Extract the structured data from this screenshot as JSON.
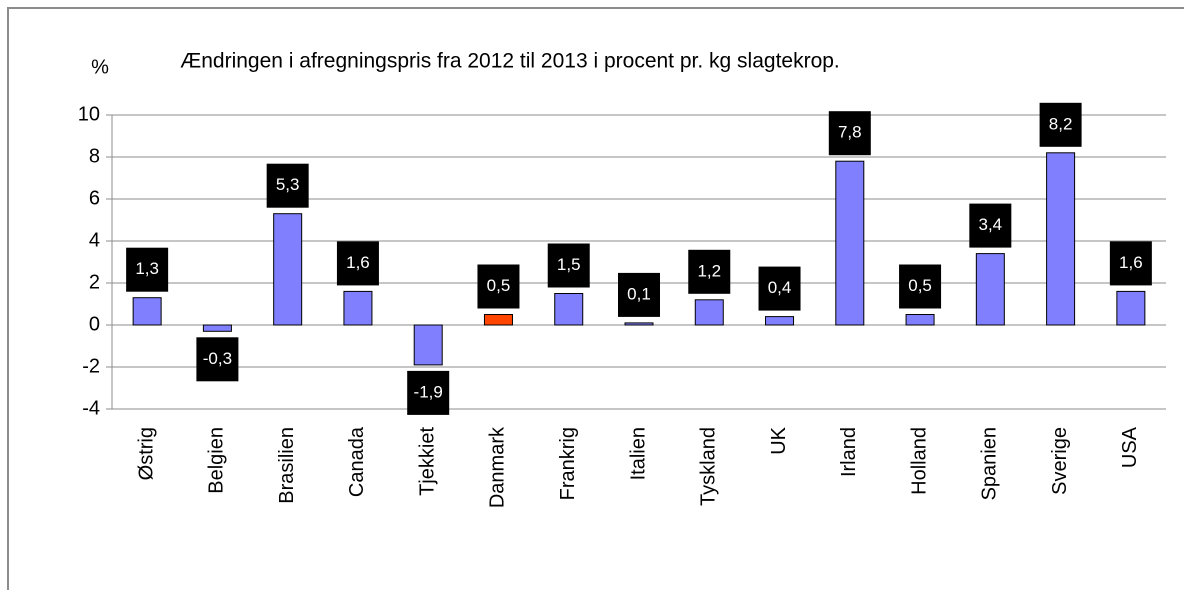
{
  "chart_data": {
    "type": "bar",
    "title": "Ændringen i afregningspris fra 2012 til 2013 i procent pr. kg slagtekrop.",
    "y_label": "%",
    "categories": [
      "Østrig",
      "Belgien",
      "Brasilien",
      "Canada",
      "Tjekkiet",
      "Danmark",
      "Frankrig",
      "Italien",
      "Tyskland",
      "UK",
      "Irland",
      "Holland",
      "Spanien",
      "Sverige",
      "USA"
    ],
    "values": [
      1.3,
      -0.3,
      5.3,
      1.6,
      -1.9,
      0.5,
      1.5,
      0.1,
      1.2,
      0.4,
      7.8,
      0.5,
      3.4,
      8.2,
      1.6
    ],
    "value_labels": [
      "1,3",
      "-0,3",
      "5,3",
      "1,6",
      "-1,9",
      "0,5",
      "1,5",
      "0,1",
      "1,2",
      "0,4",
      "7,8",
      "0,5",
      "3,4",
      "8,2",
      "1,6"
    ],
    "colors": [
      "#8080ff",
      "#8080ff",
      "#8080ff",
      "#8080ff",
      "#8080ff",
      "#ff4500",
      "#8080ff",
      "#8080ff",
      "#8080ff",
      "#8080ff",
      "#8080ff",
      "#8080ff",
      "#8080ff",
      "#8080ff",
      "#8080ff"
    ],
    "ylim": [
      -4,
      10
    ],
    "yticks": [
      -4,
      -2,
      0,
      2,
      4,
      6,
      8,
      10
    ],
    "grid": true
  }
}
